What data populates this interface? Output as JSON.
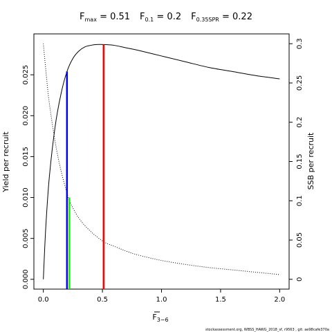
{
  "chart_data": {
    "type": "line",
    "title_parts": [
      {
        "main": "F",
        "sub": "max",
        "value": " = 0.51"
      },
      {
        "main": "F",
        "sub": "0.1",
        "value": " = 0.2"
      },
      {
        "main": "F",
        "sub": "0.35SPR",
        "value": " = 0.22"
      }
    ],
    "xlabel": {
      "main": "F",
      "sub": "3−6",
      "overline": true
    },
    "ylabel_left": "Yield per recruit",
    "ylabel_right": "SSB per recruit",
    "xlim": [
      -0.08,
      2.08
    ],
    "ylim_left": [
      -0.0012,
      0.03
    ],
    "ylim_right": [
      -0.0125,
      0.3125
    ],
    "x_ticks": [
      0,
      0.5,
      1,
      1.5,
      2
    ],
    "x_tick_labels": [
      "0.0",
      "0.5",
      "1.0",
      "1.5",
      "2.0"
    ],
    "y_left_ticks": [
      0,
      0.005,
      0.01,
      0.015,
      0.02,
      0.025
    ],
    "y_left_tick_labels": [
      "0.000",
      "0.005",
      "0.010",
      "0.015",
      "0.020",
      "0.025"
    ],
    "y_right_ticks": [
      0,
      0.05,
      0.1,
      0.15,
      0.2,
      0.25,
      0.3
    ],
    "y_right_tick_labels": [
      "0",
      "0.05",
      "0.1",
      "0.15",
      "0.2",
      "0.25",
      "0.3"
    ],
    "series": [
      {
        "style": "solid",
        "axis": "left",
        "x": [
          0,
          0.02,
          0.05,
          0.1,
          0.15,
          0.2,
          0.25,
          0.3,
          0.35,
          0.4,
          0.45,
          0.51,
          0.6,
          0.7,
          0.8,
          1.0,
          1.2,
          1.4,
          1.6,
          1.8,
          2.0
        ],
        "y": [
          0,
          0.0062,
          0.0124,
          0.0187,
          0.0227,
          0.0254,
          0.027,
          0.0279,
          0.0284,
          0.0286,
          0.0287,
          0.0287,
          0.0286,
          0.0283,
          0.028,
          0.0273,
          0.0266,
          0.0259,
          0.0254,
          0.0249,
          0.0245
        ]
      },
      {
        "style": "dotted",
        "axis": "right",
        "x": [
          0,
          0.025,
          0.05,
          0.1,
          0.15,
          0.2,
          0.22,
          0.3,
          0.4,
          0.51,
          0.6,
          0.7,
          0.8,
          1.0,
          1.2,
          1.4,
          1.6,
          1.8,
          2.0
        ],
        "y": [
          0.3,
          0.26,
          0.225,
          0.175,
          0.138,
          0.11,
          0.1,
          0.078,
          0.061,
          0.048,
          0.042,
          0.036,
          0.031,
          0.024,
          0.019,
          0.015,
          0.012,
          0.009,
          0.006
        ]
      }
    ],
    "reference_lines": [
      {
        "x": 0.2,
        "y_top": 0.0254,
        "axis": "left",
        "color": "#0000ff"
      },
      {
        "x": 0.22,
        "y_top": 0.01,
        "axis": "left",
        "color": "#00ff00"
      },
      {
        "x": 0.51,
        "y_top": 0.0287,
        "axis": "left",
        "color": "#ff0000"
      }
    ],
    "footnote": "stockassessment.org, WBSS_HAWG_2018_sf, r9563 , git: ae98cafe370a"
  }
}
